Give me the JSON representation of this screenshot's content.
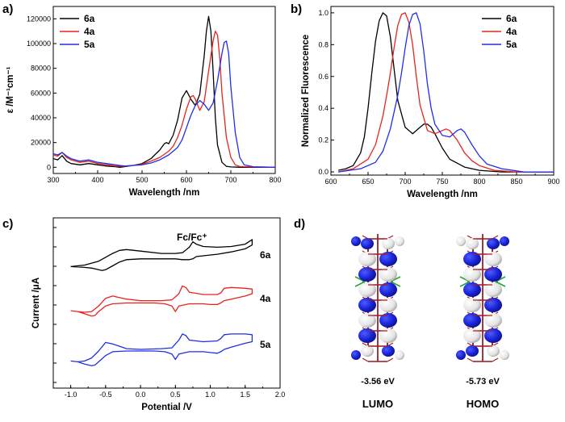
{
  "panels": {
    "a": "a)",
    "b": "b)",
    "c": "c)",
    "d": "d)"
  },
  "colors": {
    "6a": "#000000",
    "4a": "#e8231f",
    "5a": "#1f2fe6"
  },
  "chart_data": [
    {
      "type": "line",
      "panel": "a",
      "xlabel": "Wavelength /nm",
      "ylabel": "ε /M⁻¹cm⁻¹",
      "xlim": [
        300,
        800
      ],
      "ylim": [
        -5000,
        130000
      ],
      "xticks": [
        300,
        400,
        500,
        600,
        700,
        800
      ],
      "yticks": [
        0,
        20000,
        40000,
        60000,
        80000,
        100000,
        120000
      ],
      "legend_position": "top-left",
      "series": [
        {
          "name": "6a",
          "color": "#000000",
          "x": [
            300,
            310,
            320,
            330,
            340,
            360,
            380,
            400,
            420,
            440,
            450,
            460,
            480,
            500,
            520,
            540,
            550,
            555,
            560,
            570,
            580,
            590,
            600,
            610,
            620,
            630,
            640,
            645,
            650,
            655,
            660,
            665,
            670,
            680,
            690,
            700,
            720,
            750,
            800
          ],
          "y": [
            7000,
            6000,
            9500,
            5000,
            3000,
            2000,
            3000,
            2000,
            1000,
            500,
            0,
            500,
            1500,
            3000,
            7000,
            14000,
            19000,
            20000,
            19000,
            26000,
            38000,
            56000,
            62000,
            55000,
            50000,
            59000,
            90000,
            110000,
            122000,
            110000,
            78000,
            40000,
            18000,
            4000,
            800,
            300,
            0,
            0,
            0
          ]
        },
        {
          "name": "4a",
          "color": "#e8231f",
          "x": [
            300,
            310,
            320,
            330,
            340,
            360,
            380,
            400,
            420,
            440,
            460,
            480,
            500,
            520,
            540,
            560,
            570,
            580,
            590,
            600,
            610,
            615,
            620,
            630,
            640,
            650,
            660,
            665,
            670,
            675,
            680,
            690,
            700,
            710,
            720,
            750,
            800
          ],
          "y": [
            10000,
            9000,
            12000,
            8000,
            6000,
            4000,
            5000,
            3000,
            2000,
            1000,
            800,
            1500,
            2500,
            5000,
            8000,
            13000,
            17000,
            24000,
            34000,
            47000,
            57000,
            58000,
            55000,
            46000,
            53000,
            78000,
            102000,
            110000,
            107000,
            88000,
            60000,
            24000,
            8000,
            2000,
            600,
            200,
            0
          ]
        },
        {
          "name": "5a",
          "color": "#1f2fe6",
          "x": [
            300,
            310,
            320,
            330,
            340,
            360,
            380,
            400,
            420,
            440,
            460,
            480,
            500,
            520,
            540,
            560,
            580,
            590,
            600,
            610,
            620,
            630,
            640,
            650,
            660,
            670,
            680,
            685,
            690,
            695,
            700,
            710,
            720,
            730,
            750,
            800
          ],
          "y": [
            11000,
            10000,
            12000,
            9000,
            7000,
            5000,
            6000,
            4000,
            3000,
            2000,
            1000,
            1500,
            2000,
            3500,
            6000,
            10000,
            16000,
            22000,
            32000,
            42000,
            50000,
            54000,
            51000,
            46000,
            52000,
            70000,
            92000,
            101000,
            102000,
            92000,
            65000,
            28000,
            8000,
            2000,
            500,
            0
          ]
        }
      ]
    },
    {
      "type": "line",
      "panel": "b",
      "xlabel": "Wavelength /nm",
      "ylabel": "Normalized Fluorescence",
      "xlim": [
        600,
        900
      ],
      "ylim": [
        -0.02,
        1.04
      ],
      "xticks": [
        600,
        650,
        700,
        750,
        800,
        850,
        900
      ],
      "yticks": [
        0.0,
        0.2,
        0.4,
        0.6,
        0.8,
        1.0
      ],
      "legend_position": "top-right",
      "series": [
        {
          "name": "6a",
          "color": "#000000",
          "x": [
            610,
            620,
            630,
            640,
            645,
            650,
            655,
            660,
            665,
            670,
            675,
            680,
            685,
            690,
            700,
            710,
            720,
            725,
            730,
            735,
            740,
            750,
            760,
            780,
            800,
            830,
            860,
            900
          ],
          "y": [
            0.01,
            0.02,
            0.04,
            0.12,
            0.22,
            0.4,
            0.62,
            0.82,
            0.95,
            1.0,
            0.98,
            0.85,
            0.65,
            0.45,
            0.28,
            0.24,
            0.28,
            0.3,
            0.3,
            0.28,
            0.24,
            0.15,
            0.08,
            0.03,
            0.01,
            0.0,
            0.0,
            0.0
          ]
        },
        {
          "name": "4a",
          "color": "#e8231f",
          "x": [
            610,
            630,
            650,
            660,
            670,
            675,
            680,
            685,
            690,
            695,
            700,
            705,
            710,
            715,
            720,
            730,
            740,
            750,
            755,
            760,
            770,
            780,
            790,
            800,
            820,
            850,
            880,
            900
          ],
          "y": [
            0.0,
            0.02,
            0.08,
            0.17,
            0.35,
            0.48,
            0.62,
            0.78,
            0.92,
            0.99,
            1.0,
            0.94,
            0.8,
            0.6,
            0.42,
            0.26,
            0.24,
            0.26,
            0.27,
            0.26,
            0.2,
            0.12,
            0.07,
            0.04,
            0.01,
            0.0,
            0.0,
            0.0
          ]
        },
        {
          "name": "5a",
          "color": "#1f2fe6",
          "x": [
            610,
            640,
            660,
            670,
            680,
            690,
            695,
            700,
            705,
            710,
            715,
            720,
            725,
            730,
            735,
            740,
            750,
            760,
            770,
            775,
            780,
            790,
            800,
            810,
            830,
            860,
            900
          ],
          "y": [
            0.0,
            0.02,
            0.06,
            0.13,
            0.27,
            0.48,
            0.62,
            0.78,
            0.92,
            0.99,
            1.0,
            0.93,
            0.76,
            0.55,
            0.4,
            0.3,
            0.23,
            0.22,
            0.26,
            0.27,
            0.25,
            0.17,
            0.1,
            0.05,
            0.02,
            0.0,
            0.0
          ]
        }
      ]
    },
    {
      "type": "line",
      "panel": "c",
      "xlabel": "Potential /V",
      "ylabel": "Current /μA",
      "xlim": [
        -1.25,
        2.0
      ],
      "ylim": [
        -1,
        10
      ],
      "xticks": [
        -1.0,
        -0.5,
        0.0,
        0.5,
        1.0,
        1.5,
        2.0
      ],
      "annotation": "Fc/Fc⁺",
      "curve_labels": [
        "6a",
        "4a",
        "5a"
      ],
      "series": [
        {
          "name": "6a",
          "color": "#000000",
          "x": [
            -1.0,
            -0.8,
            -0.6,
            -0.5,
            -0.4,
            -0.3,
            -0.2,
            0.0,
            0.3,
            0.5,
            0.6,
            0.7,
            0.75,
            0.8,
            0.9,
            1.1,
            1.3,
            1.5,
            1.6,
            1.6,
            1.5,
            1.3,
            1.1,
            0.9,
            0.8,
            0.75,
            0.7,
            0.6,
            0.5,
            0.3,
            0.0,
            -0.2,
            -0.3,
            -0.4,
            -0.5,
            -0.55,
            -0.6,
            -0.7,
            -0.8,
            -1.0
          ],
          "y": [
            6.85,
            6.95,
            7.2,
            7.45,
            7.7,
            7.9,
            7.95,
            7.85,
            7.7,
            7.7,
            7.75,
            8.1,
            8.45,
            8.3,
            8.15,
            8.1,
            8.15,
            8.3,
            8.6,
            8.25,
            8.0,
            7.8,
            7.65,
            7.55,
            7.5,
            7.35,
            7.3,
            7.3,
            7.35,
            7.35,
            7.35,
            7.3,
            7.15,
            6.9,
            6.65,
            6.6,
            6.65,
            6.75,
            6.8,
            6.85
          ]
        },
        {
          "name": "4a",
          "color": "#e8231f",
          "x": [
            -1.0,
            -0.9,
            -0.8,
            -0.7,
            -0.6,
            -0.5,
            -0.4,
            -0.2,
            0.0,
            0.3,
            0.45,
            0.55,
            0.6,
            0.65,
            0.7,
            0.9,
            1.1,
            1.15,
            1.2,
            1.3,
            1.5,
            1.6,
            1.6,
            1.5,
            1.3,
            1.2,
            1.15,
            1.1,
            1.0,
            0.9,
            0.7,
            0.55,
            0.5,
            0.45,
            0.35,
            0.2,
            0.0,
            -0.2,
            -0.4,
            -0.5,
            -0.6,
            -0.65,
            -0.7,
            -0.8,
            -0.9,
            -1.0
          ],
          "y": [
            4.0,
            3.95,
            3.9,
            3.95,
            4.3,
            4.8,
            4.95,
            4.75,
            4.65,
            4.65,
            4.7,
            5.1,
            5.6,
            5.5,
            5.2,
            5.05,
            5.05,
            5.15,
            5.45,
            5.5,
            5.45,
            5.4,
            5.1,
            4.95,
            4.75,
            4.65,
            4.5,
            4.4,
            4.4,
            4.45,
            4.45,
            4.3,
            3.95,
            4.3,
            4.45,
            4.5,
            4.5,
            4.5,
            4.45,
            4.3,
            3.95,
            3.7,
            3.65,
            3.8,
            3.95,
            4.0
          ]
        },
        {
          "name": "5a",
          "color": "#1f2fe6",
          "x": [
            -1.0,
            -0.9,
            -0.8,
            -0.7,
            -0.6,
            -0.5,
            -0.4,
            -0.2,
            0.0,
            0.3,
            0.45,
            0.55,
            0.6,
            0.65,
            0.7,
            0.9,
            1.1,
            1.15,
            1.2,
            1.3,
            1.5,
            1.6,
            1.6,
            1.5,
            1.3,
            1.2,
            1.15,
            1.1,
            1.0,
            0.9,
            0.7,
            0.55,
            0.5,
            0.45,
            0.35,
            0.2,
            0.0,
            -0.2,
            -0.4,
            -0.5,
            -0.6,
            -0.65,
            -0.7,
            -0.8,
            -0.9,
            -1.0
          ],
          "y": [
            0.75,
            0.7,
            0.75,
            0.95,
            1.4,
            1.95,
            1.85,
            1.55,
            1.5,
            1.55,
            1.6,
            2.1,
            2.5,
            2.4,
            2.1,
            2.0,
            2.05,
            2.2,
            2.45,
            2.5,
            2.5,
            2.45,
            2.0,
            1.9,
            1.65,
            1.5,
            1.35,
            1.25,
            1.3,
            1.35,
            1.35,
            1.2,
            0.85,
            1.2,
            1.35,
            1.4,
            1.4,
            1.4,
            1.35,
            1.1,
            0.7,
            0.5,
            0.45,
            0.55,
            0.7,
            0.75
          ]
        }
      ]
    }
  ],
  "cv": {
    "annotation": "Fc/Fc⁺",
    "labels": {
      "6a": "6a",
      "4a": "4a",
      "5a": "5a"
    }
  },
  "orbitals": {
    "lumo_energy": "-3.56 eV",
    "homo_energy": "-5.73 eV",
    "lumo_label": "LUMO",
    "homo_label": "HOMO"
  }
}
